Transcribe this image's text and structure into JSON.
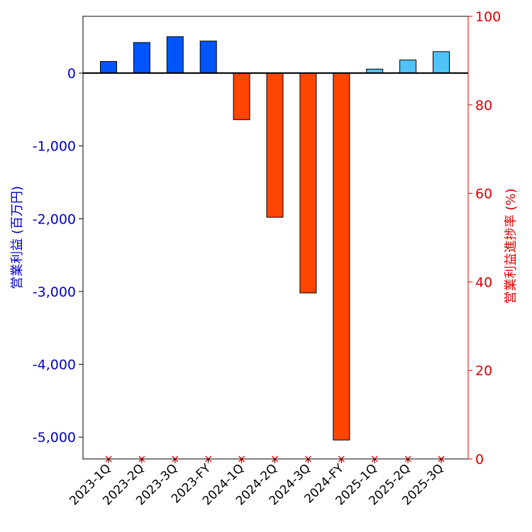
{
  "chart_data": {
    "type": "bar",
    "title": "",
    "categories": [
      "2023-1Q",
      "2023-2Q",
      "2023-3Q",
      "2023-FY",
      "2024-1Q",
      "2024-2Q",
      "2024-3Q",
      "2024-FY",
      "2025-1Q",
      "2025-2Q",
      "2025-3Q"
    ],
    "series": [
      {
        "values": [
          160,
          420,
          500,
          440,
          -640,
          -1980,
          -3020,
          -5040,
          55,
          180,
          295
        ],
        "colors": [
          "#0055ff",
          "#0055ff",
          "#0055ff",
          "#0055ff",
          "#ff4500",
          "#ff4500",
          "#ff4500",
          "#ff4500",
          "#4fc3f7",
          "#4fc3f7",
          "#4fc3f7"
        ],
        "axis": "left"
      },
      {
        "values": [
          0,
          0,
          0,
          0,
          0,
          0,
          0,
          0,
          0,
          0,
          0
        ],
        "marker": "x",
        "color": "#ff0000",
        "axis": "right"
      }
    ],
    "ylabel": "営業利益 (百万円)",
    "ylabel_right": "営業利益進捗率 (%)",
    "ylim": [
      -5300,
      780
    ],
    "ylim_right": [
      0,
      100
    ],
    "yticks": [
      0,
      -1000,
      -2000,
      -3000,
      -4000,
      -5000
    ],
    "yticks_labels": [
      "0",
      "-1,000",
      "-2,000",
      "-3,000",
      "-4,000",
      "-5,000"
    ],
    "yticks_right": [
      0,
      20,
      40,
      60,
      80,
      100
    ],
    "yticks_right_labels": [
      "0",
      "20",
      "40",
      "60",
      "80",
      "100"
    ],
    "left_axis_color": "#0000cc",
    "right_axis_color": "#dd0000",
    "grid": false,
    "legend": "none"
  }
}
